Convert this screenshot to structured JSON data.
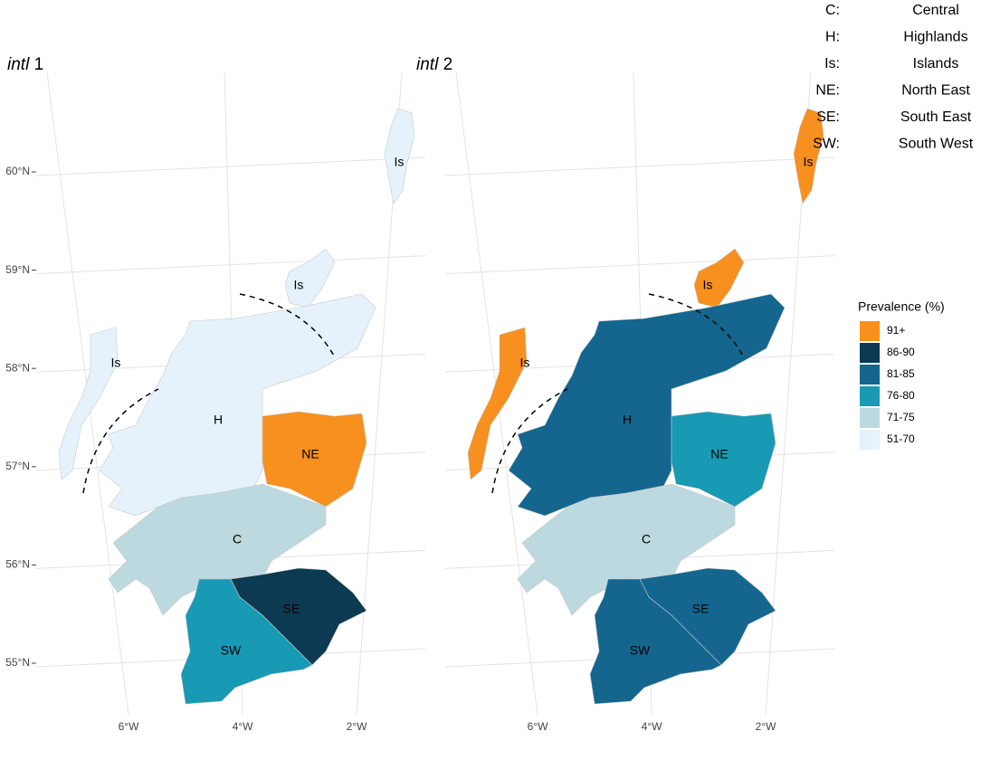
{
  "panels": [
    {
      "title_main": "intl",
      "title_suffix": "1",
      "regions": [
        {
          "code": "Is",
          "prevalence": "51-70"
        },
        {
          "code": "H",
          "prevalence": "51-70"
        },
        {
          "code": "NE",
          "prevalence": "91+"
        },
        {
          "code": "C",
          "prevalence": "71-75"
        },
        {
          "code": "SE",
          "prevalence": "86-90"
        },
        {
          "code": "SW",
          "prevalence": "76-80"
        }
      ]
    },
    {
      "title_main": "intl",
      "title_suffix": "2",
      "regions": [
        {
          "code": "Is",
          "prevalence": "91+"
        },
        {
          "code": "H",
          "prevalence": "81-85"
        },
        {
          "code": "NE",
          "prevalence": "76-80"
        },
        {
          "code": "C",
          "prevalence": "71-75"
        },
        {
          "code": "SE",
          "prevalence": "81-85"
        },
        {
          "code": "SW",
          "prevalence": "81-85"
        }
      ]
    }
  ],
  "lat_ticks": [
    {
      "value": 60,
      "label": "60°N"
    },
    {
      "value": 59,
      "label": "59°N"
    },
    {
      "value": 58,
      "label": "58°N"
    },
    {
      "value": 57,
      "label": "57°N"
    },
    {
      "value": 56,
      "label": "56°N"
    },
    {
      "value": 55,
      "label": "55°N"
    }
  ],
  "lon_ticks": [
    {
      "value": -6,
      "label": "6°W"
    },
    {
      "value": -4,
      "label": "4°W"
    },
    {
      "value": -2,
      "label": "2°W"
    }
  ],
  "legend": {
    "title": "Prevalence (%)",
    "entries": [
      {
        "label": "91+",
        "color": "#f7901e"
      },
      {
        "label": "86-90",
        "color": "#0b3a52"
      },
      {
        "label": "81-85",
        "color": "#14668f"
      },
      {
        "label": "76-80",
        "color": "#1899b4"
      },
      {
        "label": "71-75",
        "color": "#bcd9df"
      },
      {
        "label": "51-70",
        "color": "#e6f2fb"
      }
    ]
  },
  "key": [
    {
      "code": "C:",
      "name": "Central"
    },
    {
      "code": "H:",
      "name": "Highlands"
    },
    {
      "code": "Is:",
      "name": "Islands"
    },
    {
      "code": "NE:",
      "name": "North East"
    },
    {
      "code": "SE:",
      "name": "South East"
    },
    {
      "code": "SW:",
      "name": "South West"
    }
  ]
}
